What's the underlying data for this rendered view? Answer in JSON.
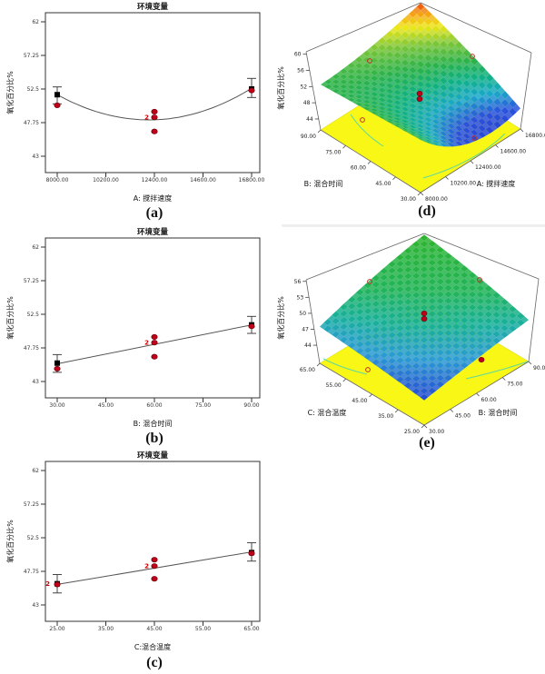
{
  "figure": {
    "background": "#ffffff"
  },
  "chart_data": [
    {
      "id": "a",
      "type": "scatter",
      "caption": "(a)",
      "title": "环境变量",
      "xlabel": "A: 搅拌速度",
      "ylabel": "氧化百分比%",
      "xtick_values": [
        8000,
        10200,
        12400,
        14600,
        16800
      ],
      "xtick_labels": [
        "8000.00",
        "10200.00",
        "12400.00",
        "14600.00",
        "16800.00"
      ],
      "ytick_values": [
        43,
        47.75,
        52.5,
        57.25,
        62
      ],
      "ytick_labels": [
        "43",
        "47.75",
        "52.5",
        "57.25",
        "62"
      ],
      "ylim": [
        43,
        62
      ],
      "fit_curve": [
        [
          8000,
          51.7
        ],
        [
          12700,
          48.2
        ],
        [
          16800,
          52.6
        ]
      ],
      "mean_points": [
        {
          "x": 8000,
          "y": 51.7,
          "err": [
            50.4,
            52.8
          ]
        },
        {
          "x": 16800,
          "y": 52.5,
          "err": [
            51.3,
            54.0
          ]
        }
      ],
      "data_points": [
        {
          "x": 8000,
          "y": 50.2
        },
        {
          "x": 12400,
          "y": 49.3
        },
        {
          "x": 12400,
          "y": 48.5,
          "count": "2"
        },
        {
          "x": 12400,
          "y": 46.5
        },
        {
          "x": 16800,
          "y": 52.3
        }
      ]
    },
    {
      "id": "b",
      "type": "scatter",
      "caption": "(b)",
      "title": "环境变量",
      "xlabel": "B: 混合时间",
      "ylabel": "氧化百分比%",
      "xtick_values": [
        30,
        45,
        60,
        75,
        90
      ],
      "xtick_labels": [
        "30.00",
        "45.00",
        "60.00",
        "75.00",
        "90.00"
      ],
      "ytick_values": [
        43,
        47.75,
        52.5,
        57.25,
        62
      ],
      "ytick_labels": [
        "43",
        "47.75",
        "52.5",
        "57.25",
        "62"
      ],
      "ylim": [
        43,
        62
      ],
      "fit_curve": [
        [
          30,
          45.5
        ],
        [
          90,
          51.0
        ]
      ],
      "mean_points": [
        {
          "x": 30,
          "y": 45.6,
          "err": [
            44.3,
            46.8
          ]
        },
        {
          "x": 90,
          "y": 51.0,
          "err": [
            49.8,
            52.2
          ]
        }
      ],
      "data_points": [
        {
          "x": 30,
          "y": 44.8
        },
        {
          "x": 60,
          "y": 49.3
        },
        {
          "x": 60,
          "y": 48.5,
          "count": "2"
        },
        {
          "x": 60,
          "y": 46.5
        },
        {
          "x": 90,
          "y": 50.8
        }
      ]
    },
    {
      "id": "c",
      "type": "scatter",
      "caption": "(c)",
      "title": "环境变量",
      "xlabel": "C:混合温度",
      "ylabel": "氧化百分比%",
      "xtick_values": [
        25,
        35,
        45,
        55,
        65
      ],
      "xtick_labels": [
        "25.00",
        "35.00",
        "45.00",
        "55.00",
        "65.00"
      ],
      "ytick_values": [
        43,
        47.75,
        52.5,
        57.25,
        62
      ],
      "ytick_labels": [
        "43",
        "47.75",
        "52.5",
        "57.25",
        "62"
      ],
      "ylim": [
        43,
        62
      ],
      "fit_curve": [
        [
          25,
          45.9
        ],
        [
          65,
          50.5
        ]
      ],
      "mean_points": [
        {
          "x": 25,
          "y": 46.0,
          "err": [
            44.7,
            47.3
          ],
          "count": "2"
        },
        {
          "x": 65,
          "y": 50.4,
          "err": [
            49.2,
            51.8
          ]
        }
      ],
      "data_points": [
        {
          "x": 25,
          "y": 45.9
        },
        {
          "x": 45,
          "y": 49.4
        },
        {
          "x": 45,
          "y": 48.5,
          "count": "2"
        },
        {
          "x": 45,
          "y": 46.7
        },
        {
          "x": 65,
          "y": 50.3
        }
      ]
    },
    {
      "id": "d",
      "type": "surface3d",
      "caption": "(d)",
      "zlabel": "氧化百分比%",
      "ztick_values": [
        44,
        48,
        52,
        56,
        60
      ],
      "ztick_labels": [
        "44",
        "48",
        "52",
        "56",
        "60"
      ],
      "left_axis": {
        "title": "B: 混合时间",
        "tick_labels": [
          "90.00",
          "75.00",
          "60.00",
          "45.00",
          "30.00"
        ]
      },
      "right_axis": {
        "title": "A: 搅拌速度",
        "tick_labels": [
          "8000.00",
          "10200.00",
          "12400.00",
          "14600.00",
          "16800.00"
        ]
      },
      "z_floor": 41.3,
      "z_top": 60.6,
      "surface_z": {
        "front": 52.5,
        "right": 46.5,
        "left": 52.5,
        "back": 60.5,
        "center": 50.3
      },
      "color_stops": [
        [
          42.5,
          "#2333cf"
        ],
        [
          46.5,
          "#2a52dc"
        ],
        [
          48.5,
          "#19a8c9"
        ],
        [
          50.5,
          "#0fb184"
        ],
        [
          52.5,
          "#2bb24a"
        ],
        [
          55,
          "#7cc637"
        ],
        [
          57.2,
          "#eee816"
        ],
        [
          59,
          "#f5a015"
        ],
        [
          60.6,
          "#e83b0c"
        ]
      ],
      "floor_color": "#f9f716",
      "markers": {
        "solid": [
          [
            162,
            103
          ],
          [
            162,
            109
          ]
        ],
        "open": [
          [
            107,
            67
          ],
          [
            220,
            62
          ],
          [
            99,
            132
          ],
          [
            222,
            152
          ]
        ]
      }
    },
    {
      "id": "e",
      "type": "surface3d",
      "caption": "(e)",
      "zlabel": "氧化百分比%",
      "ztick_values": [
        44,
        47,
        50,
        53,
        56
      ],
      "ztick_labels": [
        "44",
        "47",
        "50",
        "53",
        "56"
      ],
      "left_axis": {
        "title": "C: 混合温度",
        "tick_labels": [
          "65.00",
          "55.00",
          "45.00",
          "35.00",
          "25.00"
        ]
      },
      "right_axis": {
        "title": "B: 混合时间",
        "tick_labels": [
          "30.00",
          "45.00",
          "60.00",
          "75.00",
          "90.00"
        ]
      },
      "z_floor": 40.6,
      "z_top": 56.3,
      "surface_z": {
        "front": 44.5,
        "right": 48.5,
        "left": 47.5,
        "back": 56.0,
        "center": 49.1
      },
      "color_stops": [
        [
          44,
          "#2334d6"
        ],
        [
          46.5,
          "#2a9bd8"
        ],
        [
          48.5,
          "#18b099"
        ],
        [
          51,
          "#22b457"
        ],
        [
          56,
          "#2eb42e"
        ]
      ],
      "floor_color": "#f9f716",
      "markers": {
        "solid": [
          [
            167,
            100
          ],
          [
            167,
            106
          ],
          [
            230,
            151
          ]
        ],
        "open": [
          [
            107,
            65
          ],
          [
            228,
            63
          ],
          [
            105,
            162
          ]
        ]
      }
    }
  ]
}
